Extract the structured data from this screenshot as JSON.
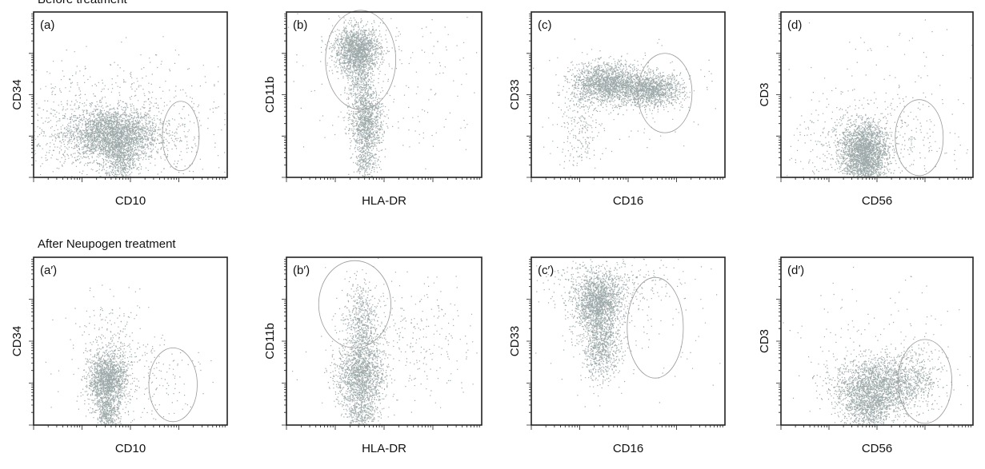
{
  "sections": {
    "before": "Before treatment",
    "after": "After Neupogen treatment"
  },
  "colors": {
    "points": "#7e8c8c",
    "points_dense": "#6f7f7f",
    "axis": "#222222",
    "gate": "#999999"
  },
  "chart_data": [
    {
      "type": "scatter",
      "id": "a",
      "panel_label": "(a)",
      "xlabel": "CD10",
      "ylabel": "CD34",
      "x_scale": "log",
      "y_scale": "log",
      "populations": [
        {
          "center": [
            0.4,
            0.26
          ],
          "spread": [
            0.12,
            0.08
          ],
          "count": 2600
        },
        {
          "center": [
            0.45,
            0.1
          ],
          "spread": [
            0.04,
            0.08
          ],
          "count": 500
        },
        {
          "center": [
            0.42,
            0.3
          ],
          "spread": [
            0.3,
            0.2
          ],
          "count": 900
        },
        {
          "center": [
            0.3,
            0.3
          ],
          "spread": [
            0.25,
            0.25
          ],
          "count": 60
        }
      ],
      "gate": {
        "cx": 0.76,
        "cy": 0.25,
        "rx": 0.095,
        "ry": 0.21
      }
    },
    {
      "type": "scatter",
      "id": "b",
      "panel_label": "(b)",
      "xlabel": "HLA-DR",
      "ylabel": "CD11b",
      "x_scale": "log",
      "y_scale": "log",
      "populations": [
        {
          "center": [
            0.36,
            0.77
          ],
          "spread": [
            0.06,
            0.07
          ],
          "count": 1600
        },
        {
          "center": [
            0.41,
            0.33
          ],
          "spread": [
            0.04,
            0.09
          ],
          "count": 900
        },
        {
          "center": [
            0.38,
            0.55
          ],
          "spread": [
            0.035,
            0.12
          ],
          "count": 500
        },
        {
          "center": [
            0.4,
            0.1
          ],
          "spread": [
            0.03,
            0.06
          ],
          "count": 250
        },
        {
          "center": [
            0.5,
            0.6
          ],
          "spread": [
            0.3,
            0.3
          ],
          "count": 220
        }
      ],
      "gate": {
        "cx": 0.38,
        "cy": 0.71,
        "rx": 0.18,
        "ry": 0.3
      }
    },
    {
      "type": "scatter",
      "id": "c",
      "panel_label": "(c)",
      "xlabel": "CD16",
      "ylabel": "CD33",
      "x_scale": "log",
      "y_scale": "log",
      "populations": [
        {
          "center": [
            0.39,
            0.57
          ],
          "spread": [
            0.09,
            0.06
          ],
          "count": 1700
        },
        {
          "center": [
            0.62,
            0.53
          ],
          "spread": [
            0.08,
            0.05
          ],
          "count": 1200
        },
        {
          "center": [
            0.25,
            0.3
          ],
          "spread": [
            0.06,
            0.12
          ],
          "count": 220
        },
        {
          "center": [
            0.5,
            0.55
          ],
          "spread": [
            0.25,
            0.18
          ],
          "count": 120
        }
      ],
      "gate": {
        "cx": 0.69,
        "cy": 0.51,
        "rx": 0.14,
        "ry": 0.24
      }
    },
    {
      "type": "scatter",
      "id": "d",
      "panel_label": "(d)",
      "xlabel": "CD56",
      "ylabel": "CD3",
      "x_scale": "log",
      "y_scale": "log",
      "populations": [
        {
          "center": [
            0.43,
            0.17
          ],
          "spread": [
            0.06,
            0.08
          ],
          "count": 1800
        },
        {
          "center": [
            0.43,
            0.05
          ],
          "spread": [
            0.05,
            0.05
          ],
          "count": 500
        },
        {
          "center": [
            0.45,
            0.22
          ],
          "spread": [
            0.2,
            0.12
          ],
          "count": 500
        },
        {
          "center": [
            0.55,
            0.45
          ],
          "spread": [
            0.25,
            0.25
          ],
          "count": 120
        }
      ],
      "gate": {
        "cx": 0.72,
        "cy": 0.24,
        "rx": 0.125,
        "ry": 0.23
      }
    },
    {
      "type": "scatter",
      "id": "a-prime",
      "panel_label": "(a′)",
      "xlabel": "CD10",
      "ylabel": "CD34",
      "x_scale": "log",
      "y_scale": "log",
      "populations": [
        {
          "center": [
            0.38,
            0.27
          ],
          "spread": [
            0.05,
            0.08
          ],
          "count": 1500
        },
        {
          "center": [
            0.38,
            0.06
          ],
          "spread": [
            0.03,
            0.06
          ],
          "count": 400
        },
        {
          "center": [
            0.4,
            0.45
          ],
          "spread": [
            0.1,
            0.15
          ],
          "count": 250
        },
        {
          "center": [
            0.55,
            0.3
          ],
          "spread": [
            0.18,
            0.15
          ],
          "count": 200
        }
      ],
      "gate": {
        "cx": 0.72,
        "cy": 0.24,
        "rx": 0.125,
        "ry": 0.22
      }
    },
    {
      "type": "scatter",
      "id": "b-prime",
      "panel_label": "(b′)",
      "xlabel": "HLA-DR",
      "ylabel": "CD11b",
      "x_scale": "log",
      "y_scale": "log",
      "populations": [
        {
          "center": [
            0.38,
            0.3
          ],
          "spread": [
            0.06,
            0.11
          ],
          "count": 1500
        },
        {
          "center": [
            0.38,
            0.62
          ],
          "spread": [
            0.04,
            0.12
          ],
          "count": 500
        },
        {
          "center": [
            0.38,
            0.08
          ],
          "spread": [
            0.04,
            0.06
          ],
          "count": 300
        },
        {
          "center": [
            0.6,
            0.5
          ],
          "spread": [
            0.2,
            0.2
          ],
          "count": 350
        }
      ],
      "gate": {
        "cx": 0.35,
        "cy": 0.72,
        "rx": 0.185,
        "ry": 0.26
      }
    },
    {
      "type": "scatter",
      "id": "c-prime",
      "panel_label": "(c′)",
      "xlabel": "CD16",
      "ylabel": "CD33",
      "x_scale": "log",
      "y_scale": "log",
      "populations": [
        {
          "center": [
            0.34,
            0.73
          ],
          "spread": [
            0.06,
            0.08
          ],
          "count": 1500
        },
        {
          "center": [
            0.36,
            0.47
          ],
          "spread": [
            0.05,
            0.1
          ],
          "count": 800
        },
        {
          "center": [
            0.38,
            0.85
          ],
          "spread": [
            0.15,
            0.08
          ],
          "count": 400
        },
        {
          "center": [
            0.45,
            0.6
          ],
          "spread": [
            0.25,
            0.2
          ],
          "count": 150
        }
      ],
      "gate": {
        "cx": 0.64,
        "cy": 0.58,
        "rx": 0.145,
        "ry": 0.3
      }
    },
    {
      "type": "scatter",
      "id": "d-prime",
      "panel_label": "(d′)",
      "xlabel": "CD56",
      "ylabel": "CD3",
      "x_scale": "log",
      "y_scale": "log",
      "populations": [
        {
          "center": [
            0.48,
            0.22
          ],
          "spread": [
            0.1,
            0.09
          ],
          "count": 2000
        },
        {
          "center": [
            0.45,
            0.07
          ],
          "spread": [
            0.06,
            0.06
          ],
          "count": 400
        },
        {
          "center": [
            0.68,
            0.28
          ],
          "spread": [
            0.08,
            0.09
          ],
          "count": 500
        },
        {
          "center": [
            0.5,
            0.4
          ],
          "spread": [
            0.25,
            0.22
          ],
          "count": 180
        }
      ],
      "gate": {
        "cx": 0.75,
        "cy": 0.26,
        "rx": 0.14,
        "ry": 0.25
      }
    }
  ]
}
